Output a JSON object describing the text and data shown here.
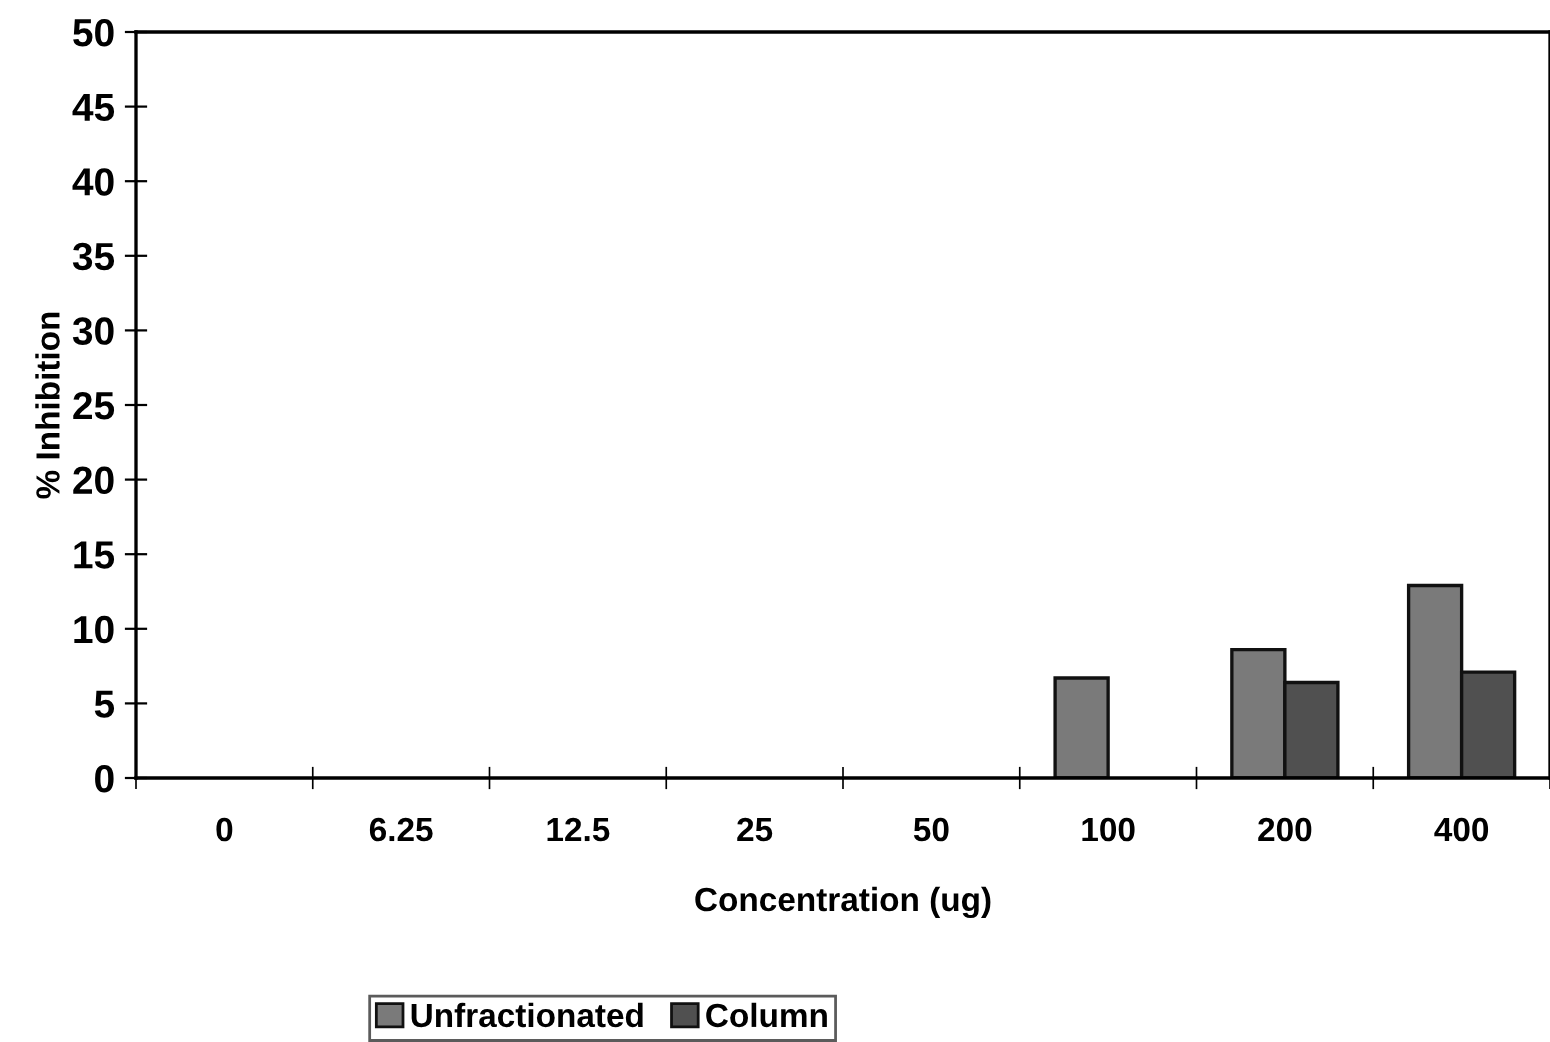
{
  "chart_data": {
    "type": "bar",
    "xlabel": "Concentration (ug)",
    "ylabel": "% Inhibition",
    "categories": [
      "0",
      "6.25",
      "12.5",
      "25",
      "50",
      "100",
      "200",
      "400"
    ],
    "series": [
      {
        "name": "Unfractionated",
        "color": "#7a7a7a",
        "values": [
          null,
          null,
          null,
          null,
          null,
          6.7,
          8.6,
          12.9
        ]
      },
      {
        "name": "Column",
        "color": "#505050",
        "values": [
          null,
          null,
          null,
          null,
          null,
          null,
          6.4,
          7.1
        ]
      }
    ],
    "ylim": [
      0,
      50
    ],
    "yticks": [
      0,
      5,
      10,
      15,
      20,
      25,
      30,
      35,
      40,
      45,
      50
    ],
    "grid": false,
    "legend": "bottom"
  }
}
